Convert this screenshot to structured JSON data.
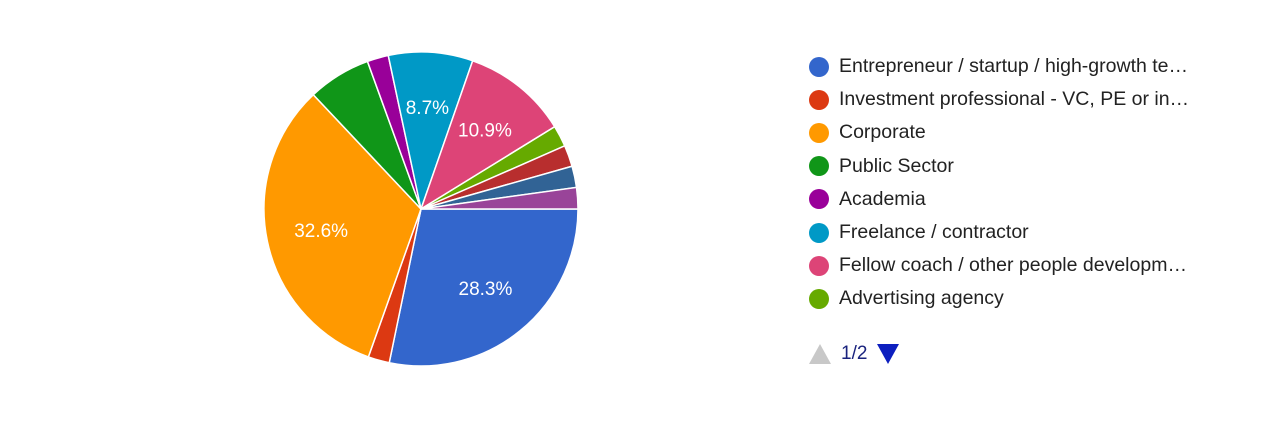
{
  "chart_data": {
    "type": "pie",
    "title": "",
    "slices": [
      {
        "name": "Entrepreneur / startup / high-growth te…",
        "value": 28.3,
        "color": "#3366cc",
        "label": "28.3%"
      },
      {
        "name": "Investment professional - VC, PE or in…",
        "value": 2.2,
        "color": "#dc3912",
        "label": ""
      },
      {
        "name": "Corporate",
        "value": 32.6,
        "color": "#ff9900",
        "label": "32.6%"
      },
      {
        "name": "Public Sector",
        "value": 6.5,
        "color": "#109618",
        "label": ""
      },
      {
        "name": "Academia",
        "value": 2.2,
        "color": "#990099",
        "label": ""
      },
      {
        "name": "Freelance / contractor",
        "value": 8.7,
        "color": "#0099c6",
        "label": "8.7%"
      },
      {
        "name": "Fellow coach / other people developm…",
        "value": 10.9,
        "color": "#dd4477",
        "label": "10.9%"
      },
      {
        "name": "Advertising agency",
        "value": 2.2,
        "color": "#66aa00",
        "label": ""
      },
      {
        "name": "",
        "value": 2.2,
        "color": "#b82e2e",
        "label": ""
      },
      {
        "name": "",
        "value": 2.2,
        "color": "#316395",
        "label": ""
      },
      {
        "name": "",
        "value": 2.2,
        "color": "#994499",
        "label": ""
      }
    ],
    "legend_position": "right",
    "legend_visible_count": 8
  },
  "pager": {
    "text": "1/2",
    "prev_icon": "triangle-up-icon",
    "next_icon": "triangle-down-icon"
  }
}
